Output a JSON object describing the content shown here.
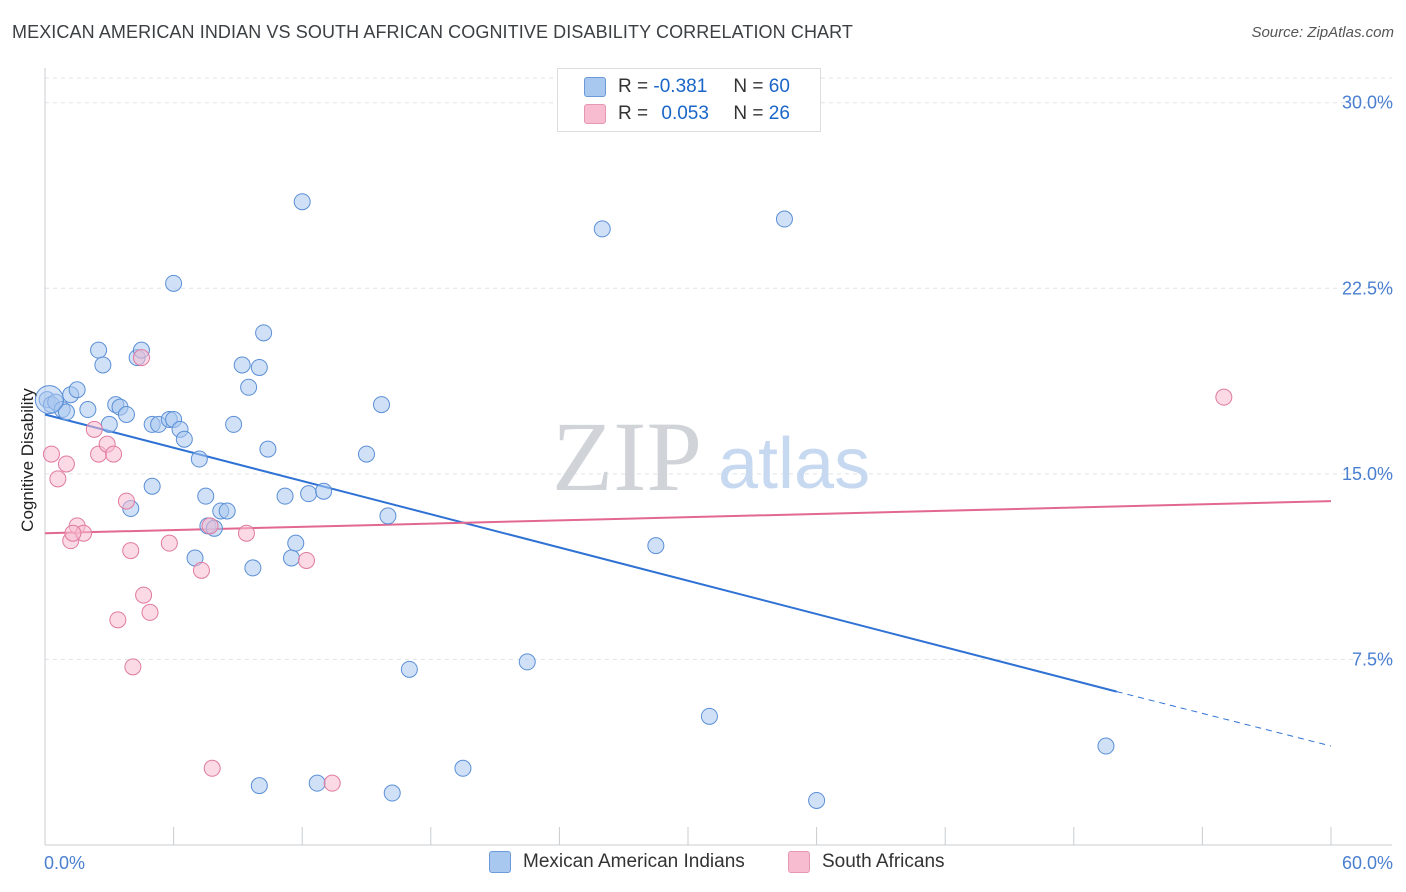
{
  "title": "MEXICAN AMERICAN INDIAN VS SOUTH AFRICAN COGNITIVE DISABILITY CORRELATION CHART",
  "source": "Source: ZipAtlas.com",
  "watermark": {
    "zip": "ZIP",
    "atlas": "atlas"
  },
  "legend": {
    "rows": [
      {
        "r_label": "R =",
        "r_value": "-0.381",
        "n_label": "N =",
        "n_value": "60",
        "color": "#a9c8f0"
      },
      {
        "r_label": "R =",
        "r_value": "0.053",
        "n_label": "N =",
        "n_value": "26",
        "color": "#f7bcd0"
      }
    ]
  },
  "chart_data": {
    "type": "scatter",
    "title": "MEXICAN AMERICAN INDIAN VS SOUTH AFRICAN COGNITIVE DISABILITY CORRELATION CHART",
    "xlabel": "",
    "ylabel": "Cognitive Disability",
    "xlim": [
      0,
      60
    ],
    "ylim": [
      0,
      31
    ],
    "x_tick_labels": [
      "0.0%",
      "60.0%"
    ],
    "y_ticks": [
      7.5,
      15.0,
      22.5,
      30.0
    ],
    "y_tick_labels": [
      "7.5%",
      "15.0%",
      "22.5%",
      "30.0%"
    ],
    "grid": "horizontal dashed",
    "legend_position": "top-center",
    "series": [
      {
        "name": "Mexican American Indians",
        "color": "#a9c8f0",
        "stroke": "#5b8fd6",
        "points": [
          [
            0.1,
            18.0
          ],
          [
            0.3,
            17.8
          ],
          [
            0.5,
            17.9
          ],
          [
            0.8,
            17.6
          ],
          [
            1.0,
            17.5
          ],
          [
            1.2,
            18.2
          ],
          [
            1.5,
            18.4
          ],
          [
            2.0,
            17.6
          ],
          [
            2.5,
            20.0
          ],
          [
            2.7,
            19.4
          ],
          [
            3.0,
            17.0
          ],
          [
            3.3,
            17.8
          ],
          [
            3.5,
            17.7
          ],
          [
            3.8,
            17.4
          ],
          [
            4.0,
            13.6
          ],
          [
            4.3,
            19.7
          ],
          [
            4.5,
            20.0
          ],
          [
            5.0,
            14.5
          ],
          [
            5.0,
            17.0
          ],
          [
            5.3,
            17.0
          ],
          [
            5.8,
            17.2
          ],
          [
            6.0,
            17.2
          ],
          [
            6.0,
            22.7
          ],
          [
            6.3,
            16.8
          ],
          [
            6.5,
            16.4
          ],
          [
            7.0,
            11.6
          ],
          [
            7.2,
            15.6
          ],
          [
            7.5,
            14.1
          ],
          [
            7.6,
            12.9
          ],
          [
            7.9,
            12.8
          ],
          [
            8.2,
            13.5
          ],
          [
            8.5,
            13.5
          ],
          [
            8.8,
            17.0
          ],
          [
            9.2,
            19.4
          ],
          [
            9.5,
            18.5
          ],
          [
            9.7,
            11.2
          ],
          [
            10.0,
            19.3
          ],
          [
            10.2,
            20.7
          ],
          [
            10.4,
            16.0
          ],
          [
            11.2,
            14.1
          ],
          [
            11.5,
            11.6
          ],
          [
            11.7,
            12.2
          ],
          [
            12.0,
            26.0
          ],
          [
            12.3,
            14.2
          ],
          [
            12.7,
            2.5
          ],
          [
            13.0,
            14.3
          ],
          [
            15.0,
            15.8
          ],
          [
            15.7,
            17.8
          ],
          [
            16.0,
            13.3
          ],
          [
            16.2,
            2.1
          ],
          [
            17.0,
            7.1
          ],
          [
            10.0,
            2.4
          ],
          [
            19.5,
            3.1
          ],
          [
            22.5,
            7.4
          ],
          [
            26.0,
            24.9
          ],
          [
            28.5,
            12.1
          ],
          [
            31.0,
            5.2
          ],
          [
            34.5,
            25.3
          ],
          [
            49.5,
            4.0
          ],
          [
            36.0,
            1.8
          ]
        ]
      },
      {
        "name": "South Africans",
        "color": "#f7bcd0",
        "stroke": "#e07aa0",
        "points": [
          [
            0.3,
            15.8
          ],
          [
            0.6,
            14.8
          ],
          [
            1.0,
            15.4
          ],
          [
            1.2,
            12.3
          ],
          [
            1.5,
            12.9
          ],
          [
            1.8,
            12.6
          ],
          [
            2.3,
            16.8
          ],
          [
            2.5,
            15.8
          ],
          [
            2.9,
            16.2
          ],
          [
            3.2,
            15.8
          ],
          [
            3.4,
            9.1
          ],
          [
            3.8,
            13.9
          ],
          [
            4.0,
            11.9
          ],
          [
            4.1,
            7.2
          ],
          [
            4.5,
            19.7
          ],
          [
            4.6,
            10.1
          ],
          [
            4.9,
            9.4
          ],
          [
            5.8,
            12.2
          ],
          [
            7.3,
            11.1
          ],
          [
            7.7,
            12.9
          ],
          [
            7.8,
            3.1
          ],
          [
            9.4,
            12.6
          ],
          [
            12.2,
            11.5
          ],
          [
            13.4,
            2.5
          ],
          [
            55.0,
            18.1
          ],
          [
            1.3,
            12.6
          ]
        ]
      }
    ],
    "trendlines": [
      {
        "series": "Mexican American Indians",
        "color": "#2f72d4",
        "x0": 0,
        "y0": 17.4,
        "x1": 50,
        "y1": 6.2,
        "dashed_to_x": 60,
        "dashed_to_y": 4.0
      },
      {
        "series": "South Africans",
        "color": "#e2688f",
        "x0": 0,
        "y0": 12.6,
        "x1": 60,
        "y1": 13.9
      }
    ]
  },
  "bottom_legend": [
    {
      "label": "Mexican American Indians",
      "color": "#a9c8f0"
    },
    {
      "label": "South Africans",
      "color": "#f7bcd0"
    }
  ]
}
